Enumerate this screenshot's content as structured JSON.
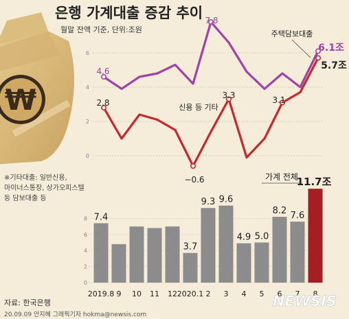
{
  "header": {
    "title": "은행 가계대출 증감 추이",
    "subtitle": "월말 잔액 기준, 단위:조원"
  },
  "note": [
    "※기타대출: 일반신용,",
    "마이너스통장, 상가오피스텔",
    "등 담보대출 등"
  ],
  "footer": {
    "source": "자료: 한국은행",
    "credit": "20.09.09 안지혜 그래픽기자 hokma@newsis.com",
    "logo": "NEWSIS"
  },
  "colors": {
    "mortgage": "#a142a6",
    "credit": "#c8282b",
    "bar": "#8c8c8c",
    "bar_highlight": "#a51f22",
    "background": "#f5ecd9"
  },
  "chart_data": [
    {
      "type": "line",
      "x": [
        "2019.8",
        "9",
        "10",
        "11",
        "12",
        "2020.1",
        "2",
        "3",
        "4",
        "5",
        "6",
        "7",
        "8"
      ],
      "y_ticks": [
        0,
        2,
        4,
        6
      ],
      "ylim": [
        0,
        8
      ],
      "series": [
        {
          "name": "주택담보대출",
          "key": "mortgage",
          "values": [
            4.6,
            3.9,
            4.6,
            4.8,
            5.3,
            4.2,
            7.8,
            6.6,
            4.9,
            3.9,
            4.8,
            4.0,
            6.1
          ],
          "labels": [
            {
              "index": 0,
              "text": "4.6"
            },
            {
              "index": 6,
              "text": "7.8"
            },
            {
              "index": 12,
              "text": "6.1조"
            }
          ]
        },
        {
          "name": "신용 등 기타",
          "key": "credit",
          "values": [
            2.8,
            1.0,
            2.4,
            2.1,
            1.5,
            -0.6,
            1.4,
            3.3,
            -0.1,
            1.0,
            3.1,
            3.7,
            5.7
          ],
          "labels": [
            {
              "index": 0,
              "text": "2.8"
            },
            {
              "index": 5,
              "text": "−0.6"
            },
            {
              "index": 7,
              "text": "3.3"
            },
            {
              "index": 10,
              "text": "3.1"
            },
            {
              "index": 12,
              "text": "5.7조"
            }
          ]
        }
      ]
    },
    {
      "type": "bar",
      "title": "가계 전체",
      "categories": [
        "2019.8",
        "9",
        "10",
        "11",
        "12",
        "2020.1",
        "2",
        "3",
        "4",
        "5",
        "6",
        "7",
        "8"
      ],
      "values": [
        7.4,
        4.8,
        7.0,
        6.8,
        7.0,
        3.7,
        9.3,
        9.6,
        4.9,
        5.0,
        8.2,
        7.6,
        11.7
      ],
      "value_labels": [
        "7.4",
        "",
        "",
        "",
        "",
        "3.7",
        "9.3",
        "9.6",
        "4.9",
        "5.0",
        "8.2",
        "7.6",
        "11.7조"
      ],
      "y_ticks": [
        0,
        2,
        4,
        6,
        8
      ],
      "ylim": [
        0,
        12
      ]
    }
  ]
}
